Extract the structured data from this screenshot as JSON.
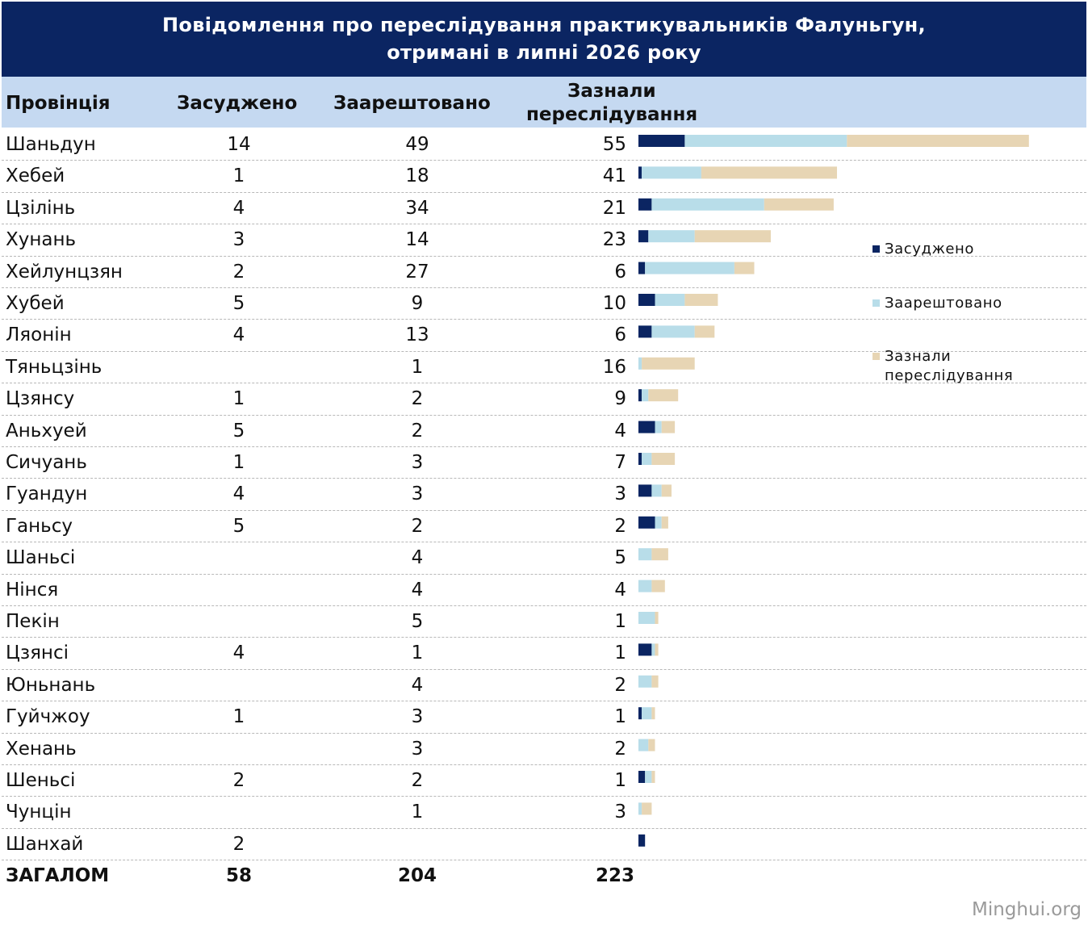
{
  "chart_data": {
    "type": "table",
    "title_lines": [
      "Повідомлення про переслідування практикувальників Фалуньгун,",
      "отримані в липні 2026 року"
    ],
    "columns": {
      "province": "Провінція",
      "sentenced": "Засуджено",
      "arrested": "Заарештовано",
      "persecuted_line1": "Зазнали",
      "persecuted_line2": "переслідування"
    },
    "rows": [
      {
        "province": "Шаньдун",
        "sentenced": 14,
        "arrested": 49,
        "persecuted": 55
      },
      {
        "province": "Хебей",
        "sentenced": 1,
        "arrested": 18,
        "persecuted": 41
      },
      {
        "province": "Цзілінь",
        "sentenced": 4,
        "arrested": 34,
        "persecuted": 21
      },
      {
        "province": "Хунань",
        "sentenced": 3,
        "arrested": 14,
        "persecuted": 23
      },
      {
        "province": "Хейлунцзян",
        "sentenced": 2,
        "arrested": 27,
        "persecuted": 6
      },
      {
        "province": "Хубей",
        "sentenced": 5,
        "arrested": 9,
        "persecuted": 10
      },
      {
        "province": "Ляонін",
        "sentenced": 4,
        "arrested": 13,
        "persecuted": 6
      },
      {
        "province": "Тяньцзінь",
        "sentenced": null,
        "arrested": 1,
        "persecuted": 16
      },
      {
        "province": "Цзянсу",
        "sentenced": 1,
        "arrested": 2,
        "persecuted": 9
      },
      {
        "province": "Аньхуей",
        "sentenced": 5,
        "arrested": 2,
        "persecuted": 4
      },
      {
        "province": "Сичуань",
        "sentenced": 1,
        "arrested": 3,
        "persecuted": 7
      },
      {
        "province": "Гуандун",
        "sentenced": 4,
        "arrested": 3,
        "persecuted": 3
      },
      {
        "province": "Ганьсу",
        "sentenced": 5,
        "arrested": 2,
        "persecuted": 2
      },
      {
        "province": "Шаньсі",
        "sentenced": null,
        "arrested": 4,
        "persecuted": 5
      },
      {
        "province": "Нінся",
        "sentenced": null,
        "arrested": 4,
        "persecuted": 4
      },
      {
        "province": "Пекін",
        "sentenced": null,
        "arrested": 5,
        "persecuted": 1
      },
      {
        "province": "Цзянсі",
        "sentenced": 4,
        "arrested": 1,
        "persecuted": 1
      },
      {
        "province": "Юньнань",
        "sentenced": null,
        "arrested": 4,
        "persecuted": 2
      },
      {
        "province": "Гуйчжоу",
        "sentenced": 1,
        "arrested": 3,
        "persecuted": 1
      },
      {
        "province": "Хенань",
        "sentenced": null,
        "arrested": 3,
        "persecuted": 2
      },
      {
        "province": "Шеньсі",
        "sentenced": 2,
        "arrested": 2,
        "persecuted": 1
      },
      {
        "province": "Чунцін",
        "sentenced": null,
        "arrested": 1,
        "persecuted": 3
      },
      {
        "province": "Шанхай",
        "sentenced": 2,
        "arrested": null,
        "persecuted": null
      }
    ],
    "total": {
      "label": "ЗАГАЛОМ",
      "sentenced": 58,
      "arrested": 204,
      "persecuted": 223
    },
    "bar_chart": {
      "type": "bar",
      "stacked": true,
      "orientation": "horizontal",
      "series": [
        {
          "name": "Засуджено",
          "color": "#0b2562",
          "key": "sentenced"
        },
        {
          "name": "Заарештовано",
          "color": "#b8dde9",
          "key": "arrested"
        },
        {
          "name": "Зазнали переслідування",
          "color": "#e7d5b4",
          "key": "persecuted"
        }
      ],
      "legend_position": "right",
      "legend_lines": [
        "Засуджено",
        "Заарештовано",
        "Зазнали",
        "переслідування"
      ]
    }
  },
  "watermark": "Minghui.org"
}
